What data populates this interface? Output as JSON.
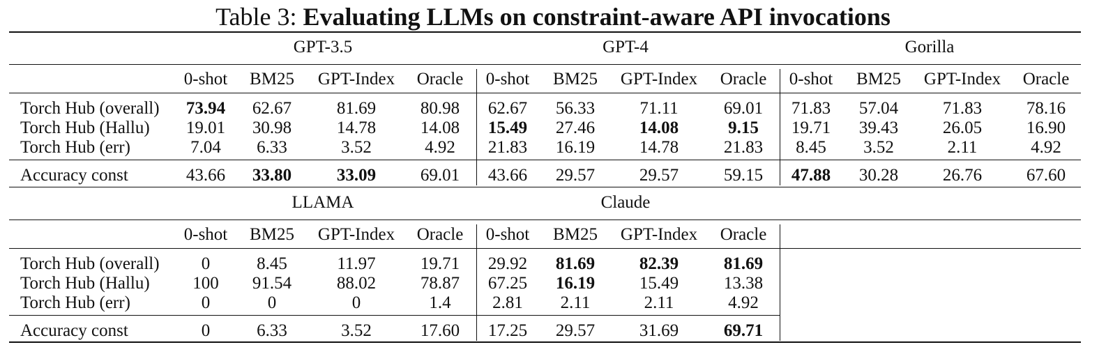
{
  "caption": {
    "label": "Table 3:",
    "title": "Evaluating LLMs on constraint-aware API invocations"
  },
  "settings": [
    "0-shot",
    "BM25",
    "GPT-Index",
    "Oracle"
  ],
  "row_labels": [
    "Torch Hub (overall)",
    "Torch Hub (Hallu)",
    "Torch Hub (err)",
    "Accuracy const"
  ],
  "top": {
    "models": [
      "GPT-3.5",
      "GPT-4",
      "Gorilla"
    ],
    "rows": [
      [
        "73.94",
        "62.67",
        "81.69",
        "80.98",
        "62.67",
        "56.33",
        "71.11",
        "69.01",
        "71.83",
        "57.04",
        "71.83",
        "78.16"
      ],
      [
        "19.01",
        "30.98",
        "14.78",
        "14.08",
        "15.49",
        "27.46",
        "14.08",
        "9.15",
        "19.71",
        "39.43",
        "26.05",
        "16.90"
      ],
      [
        "7.04",
        "6.33",
        "3.52",
        "4.92",
        "21.83",
        "16.19",
        "14.78",
        "21.83",
        "8.45",
        "3.52",
        "2.11",
        "4.92"
      ],
      [
        "43.66",
        "33.80",
        "33.09",
        "69.01",
        "43.66",
        "29.57",
        "29.57",
        "59.15",
        "47.88",
        "30.28",
        "26.76",
        "67.60"
      ]
    ],
    "bold": [
      [
        0,
        0
      ],
      [
        1,
        4
      ],
      [
        1,
        6
      ],
      [
        1,
        7
      ],
      [
        3,
        1
      ],
      [
        3,
        2
      ],
      [
        3,
        8
      ]
    ]
  },
  "bottom": {
    "models": [
      "LLAMA",
      "Claude"
    ],
    "rows": [
      [
        "0",
        "8.45",
        "11.97",
        "19.71",
        "29.92",
        "81.69",
        "82.39",
        "81.69"
      ],
      [
        "100",
        "91.54",
        "88.02",
        "78.87",
        "67.25",
        "16.19",
        "15.49",
        "13.38"
      ],
      [
        "0",
        "0",
        "0",
        "1.4",
        "2.81",
        "2.11",
        "2.11",
        "4.92"
      ],
      [
        "0",
        "6.33",
        "3.52",
        "17.60",
        "17.25",
        "29.57",
        "31.69",
        "69.71"
      ]
    ],
    "bold": [
      [
        0,
        5
      ],
      [
        0,
        6
      ],
      [
        0,
        7
      ],
      [
        1,
        5
      ],
      [
        3,
        7
      ]
    ]
  }
}
